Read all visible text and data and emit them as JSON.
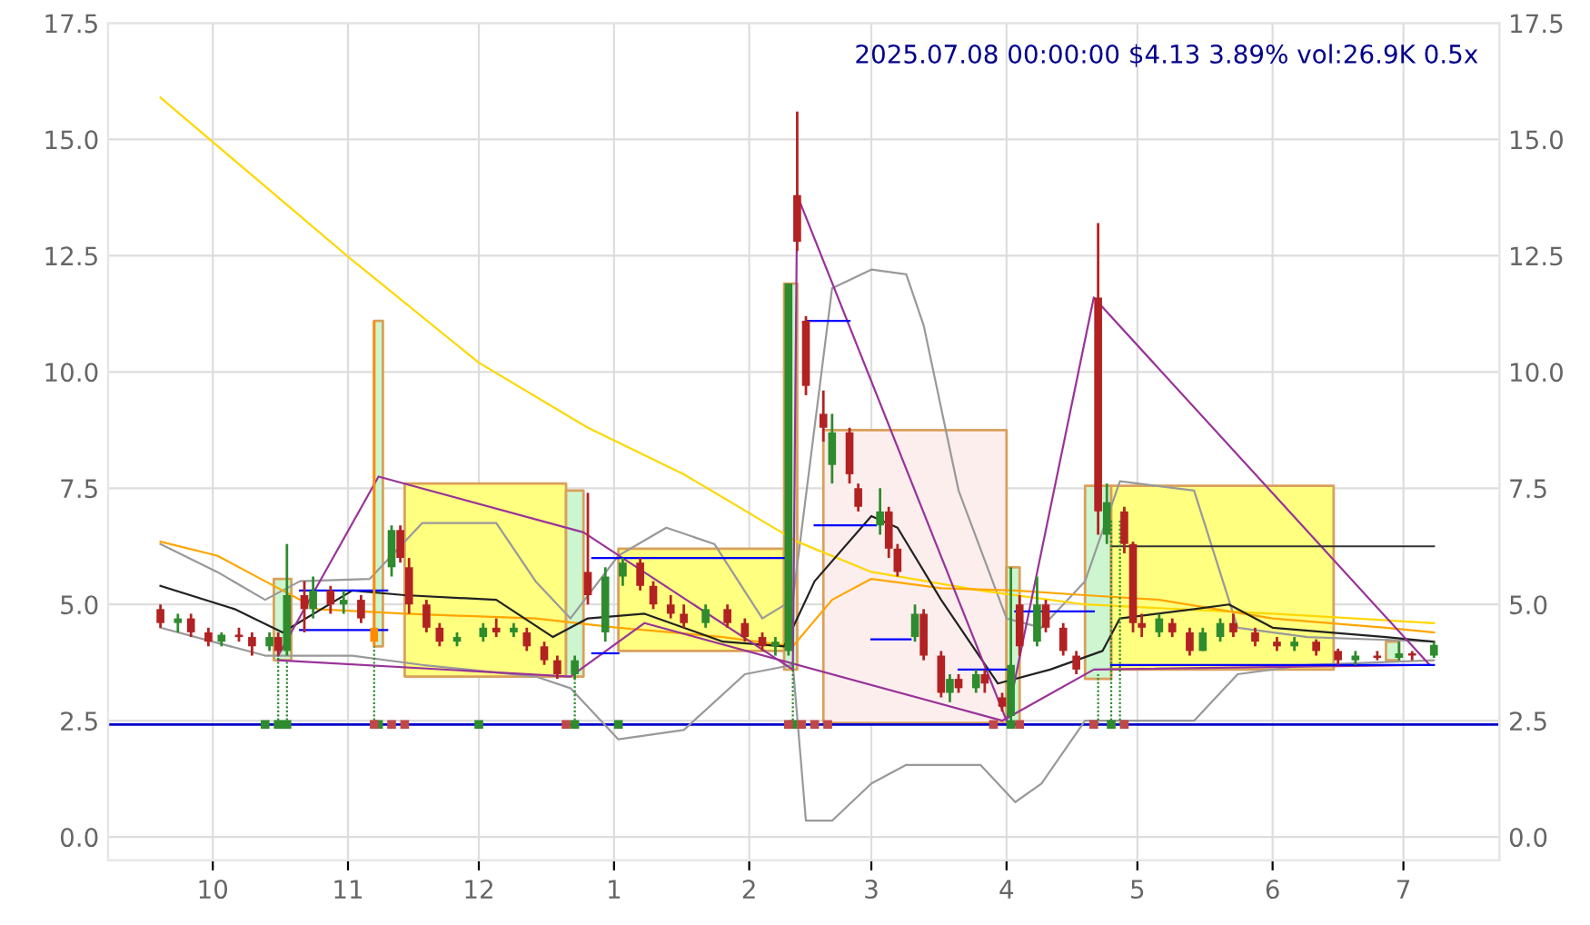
{
  "chart_data": {
    "type": "candlestick",
    "title": "2025.07.08 00:00:00 $4.13 3.89% vol:26.9K 0.5x",
    "x": [
      "2024-09-19",
      "2024-09-23",
      "2024-09-26",
      "2024-09-30",
      "2024-10-03",
      "2024-10-07",
      "2024-10-10",
      "2024-10-14",
      "2024-10-16",
      "2024-10-18",
      "2024-10-22",
      "2024-10-24",
      "2024-10-28",
      "2024-10-31",
      "2024-11-04",
      "2024-11-07",
      "2024-11-11",
      "2024-11-13",
      "2024-11-15",
      "2024-11-19",
      "2024-11-22",
      "2024-11-26",
      "2024-12-02",
      "2024-12-05",
      "2024-12-09",
      "2024-12-12",
      "2024-12-16",
      "2024-12-19",
      "2024-12-23",
      "2024-12-26",
      "2024-12-30",
      "2025-01-03",
      "2025-01-07",
      "2025-01-10",
      "2025-01-14",
      "2025-01-17",
      "2025-01-22",
      "2025-01-27",
      "2025-01-31",
      "2025-02-04",
      "2025-02-07",
      "2025-02-10",
      "2025-02-12",
      "2025-02-14",
      "2025-02-18",
      "2025-02-20",
      "2025-02-24",
      "2025-02-26",
      "2025-03-03",
      "2025-03-05",
      "2025-03-07",
      "2025-03-11",
      "2025-03-13",
      "2025-03-17",
      "2025-03-19",
      "2025-03-21",
      "2025-03-25",
      "2025-03-27",
      "2025-03-31",
      "2025-04-02",
      "2025-04-04",
      "2025-04-08",
      "2025-04-10",
      "2025-04-14",
      "2025-04-17",
      "2025-04-22",
      "2025-04-24",
      "2025-04-28",
      "2025-04-30",
      "2025-05-02",
      "2025-05-06",
      "2025-05-09",
      "2025-05-13",
      "2025-05-16",
      "2025-05-20",
      "2025-05-23",
      "2025-05-28",
      "2025-06-02",
      "2025-06-06",
      "2025-06-11",
      "2025-06-16",
      "2025-06-20",
      "2025-06-25",
      "2025-06-30",
      "2025-07-03",
      "2025-07-08"
    ],
    "ohlc": [
      [
        4.9,
        5.0,
        4.5,
        4.6
      ],
      [
        4.6,
        4.8,
        4.4,
        4.7
      ],
      [
        4.7,
        4.8,
        4.3,
        4.4
      ],
      [
        4.4,
        4.5,
        4.1,
        4.2
      ],
      [
        4.2,
        4.4,
        4.1,
        4.35
      ],
      [
        4.35,
        4.5,
        4.2,
        4.3
      ],
      [
        4.3,
        4.4,
        3.9,
        4.1
      ],
      [
        4.1,
        4.4,
        4.0,
        4.3
      ],
      [
        4.3,
        4.4,
        3.9,
        4.0
      ],
      [
        4.0,
        6.3,
        3.9,
        5.2
      ],
      [
        5.2,
        5.5,
        4.4,
        4.9
      ],
      [
        4.9,
        5.6,
        4.7,
        5.3
      ],
      [
        5.3,
        5.4,
        4.8,
        5.0
      ],
      [
        5.0,
        5.3,
        4.8,
        5.1
      ],
      [
        5.1,
        5.2,
        4.6,
        4.7
      ],
      [
        4.5,
        11.1,
        4.1,
        4.2
      ],
      [
        5.8,
        6.7,
        5.6,
        6.6
      ],
      [
        6.6,
        6.7,
        5.9,
        6.0
      ],
      [
        5.8,
        6.0,
        4.8,
        5.0
      ],
      [
        5.0,
        5.1,
        4.4,
        4.5
      ],
      [
        4.5,
        4.6,
        4.1,
        4.2
      ],
      [
        4.2,
        4.4,
        4.1,
        4.3
      ],
      [
        4.3,
        4.6,
        4.2,
        4.5
      ],
      [
        4.5,
        4.7,
        4.3,
        4.4
      ],
      [
        4.4,
        4.6,
        4.3,
        4.5
      ],
      [
        4.4,
        4.5,
        4.0,
        4.1
      ],
      [
        4.1,
        4.2,
        3.7,
        3.8
      ],
      [
        3.8,
        3.9,
        3.4,
        3.5
      ],
      [
        3.5,
        3.9,
        3.4,
        3.8
      ],
      [
        5.7,
        7.4,
        5.0,
        5.2
      ],
      [
        4.4,
        5.8,
        4.2,
        5.6
      ],
      [
        5.6,
        6.0,
        5.4,
        5.9
      ],
      [
        5.9,
        6.0,
        5.3,
        5.4
      ],
      [
        5.4,
        5.5,
        4.9,
        5.0
      ],
      [
        5.0,
        5.2,
        4.7,
        4.8
      ],
      [
        4.8,
        5.0,
        4.5,
        4.6
      ],
      [
        4.6,
        5.0,
        4.5,
        4.9
      ],
      [
        4.9,
        5.0,
        4.5,
        4.6
      ],
      [
        4.6,
        4.7,
        4.2,
        4.3
      ],
      [
        4.3,
        4.4,
        4.0,
        4.1
      ],
      [
        4.1,
        4.3,
        3.9,
        4.2
      ],
      [
        4.0,
        11.9,
        3.9,
        11.9
      ],
      [
        13.8,
        15.6,
        12.6,
        12.8
      ],
      [
        11.1,
        11.2,
        9.5,
        9.7
      ],
      [
        9.1,
        9.6,
        8.5,
        8.8
      ],
      [
        8.0,
        9.1,
        7.6,
        8.7
      ],
      [
        8.7,
        8.8,
        7.6,
        7.8
      ],
      [
        7.5,
        7.6,
        7.0,
        7.1
      ],
      [
        6.7,
        7.5,
        6.5,
        7.0
      ],
      [
        7.0,
        7.1,
        6.0,
        6.2
      ],
      [
        6.2,
        6.3,
        5.6,
        5.7
      ],
      [
        4.3,
        5.0,
        4.2,
        4.8
      ],
      [
        4.8,
        4.9,
        3.8,
        3.9
      ],
      [
        3.9,
        4.0,
        3.0,
        3.1
      ],
      [
        3.1,
        3.5,
        2.9,
        3.4
      ],
      [
        3.4,
        3.5,
        3.1,
        3.2
      ],
      [
        3.2,
        3.6,
        3.1,
        3.5
      ],
      [
        3.5,
        3.6,
        3.1,
        3.3
      ],
      [
        3.0,
        3.1,
        2.7,
        2.8
      ],
      [
        2.6,
        5.8,
        2.5,
        3.7
      ],
      [
        5.0,
        5.2,
        3.9,
        4.1
      ],
      [
        4.2,
        5.6,
        4.1,
        5.0
      ],
      [
        5.0,
        5.1,
        4.4,
        4.5
      ],
      [
        4.5,
        4.6,
        3.9,
        4.0
      ],
      [
        3.9,
        4.0,
        3.5,
        3.6
      ],
      [
        11.6,
        13.2,
        6.5,
        7.0
      ],
      [
        6.5,
        7.6,
        6.3,
        7.2
      ],
      [
        7.0,
        7.1,
        6.1,
        6.3
      ],
      [
        6.3,
        6.35,
        4.4,
        4.6
      ],
      [
        4.6,
        4.8,
        4.3,
        4.5
      ],
      [
        4.4,
        4.8,
        4.3,
        4.7
      ],
      [
        4.6,
        4.7,
        4.3,
        4.4
      ],
      [
        4.4,
        4.5,
        3.9,
        4.0
      ],
      [
        4.0,
        4.5,
        4.0,
        4.4
      ],
      [
        4.3,
        4.7,
        4.2,
        4.6
      ],
      [
        4.6,
        4.8,
        4.3,
        4.4
      ],
      [
        4.4,
        4.5,
        4.1,
        4.2
      ],
      [
        4.2,
        4.3,
        4.0,
        4.1
      ],
      [
        4.1,
        4.3,
        4.0,
        4.2
      ],
      [
        4.2,
        4.25,
        3.9,
        4.0
      ],
      [
        4.0,
        4.05,
        3.7,
        3.8
      ],
      [
        3.8,
        4.0,
        3.7,
        3.9
      ],
      [
        3.9,
        4.0,
        3.8,
        3.85
      ],
      [
        3.85,
        4.2,
        3.8,
        3.95
      ],
      [
        3.95,
        4.0,
        3.8,
        3.9
      ],
      [
        3.9,
        4.2,
        3.85,
        4.13
      ]
    ],
    "colors": [
      "#b22222",
      "#2e8b2e",
      "#b22222",
      "#b22222",
      "#2e8b2e",
      "#b22222",
      "#b22222",
      "#2e8b2e",
      "#b22222",
      "#2e8b2e",
      "#b22222",
      "#2e8b2e",
      "#b22222",
      "#2e8b2e",
      "#b22222",
      "#ff8c00",
      "#2e8b2e",
      "#b22222",
      "#b22222",
      "#b22222",
      "#b22222",
      "#2e8b2e",
      "#2e8b2e",
      "#b22222",
      "#2e8b2e",
      "#b22222",
      "#b22222",
      "#b22222",
      "#2e8b2e",
      "#b22222",
      "#2e8b2e",
      "#2e8b2e",
      "#b22222",
      "#b22222",
      "#b22222",
      "#b22222",
      "#2e8b2e",
      "#b22222",
      "#b22222",
      "#b22222",
      "#2e8b2e",
      "#2e8b2e",
      "#b22222",
      "#b22222",
      "#b22222",
      "#2e8b2e",
      "#b22222",
      "#b22222",
      "#2e8b2e",
      "#b22222",
      "#b22222",
      "#2e8b2e",
      "#b22222",
      "#b22222",
      "#2e8b2e",
      "#b22222",
      "#2e8b2e",
      "#b22222",
      "#b22222",
      "#2e8b2e",
      "#b22222",
      "#2e8b2e",
      "#b22222",
      "#b22222",
      "#b22222",
      "#b22222",
      "#2e8b2e",
      "#b22222",
      "#b22222",
      "#b22222",
      "#2e8b2e",
      "#b22222",
      "#b22222",
      "#2e8b2e",
      "#2e8b2e",
      "#b22222",
      "#b22222",
      "#b22222",
      "#2e8b2e",
      "#b22222",
      "#b22222",
      "#2e8b2e",
      "#b22222",
      "#2e8b2e",
      "#b22222",
      "#2e8b2e"
    ],
    "series": [
      {
        "type": "line",
        "color": "#ccf5d0",
        "x": [
          "2024-10-15",
          "2024-10-19"
        ],
        "values": [
          null,
          null
        ],
        "lower": [
          3.8,
          3.8
        ],
        "upper": [
          5.55,
          5.55
        ]
      },
      {
        "type": "line",
        "color": "#ccf5d0",
        "x": [
          "2024-11-07",
          "2024-11-09"
        ],
        "values": [
          null,
          null
        ],
        "lower": [
          4.1,
          4.1
        ],
        "upper": [
          11.1,
          11.1
        ]
      },
      {
        "type": "line",
        "color": "#ffff80",
        "x": [
          "2024-11-14",
          "2024-12-21"
        ],
        "values": [
          null,
          null
        ],
        "lower": [
          3.45,
          3.45
        ],
        "upper": [
          7.6,
          7.6
        ]
      },
      {
        "type": "line",
        "color": "#ccf5d0",
        "x": [
          "2024-12-21",
          "2024-12-25"
        ],
        "values": [
          null,
          null
        ],
        "lower": [
          3.45,
          3.45
        ],
        "upper": [
          7.45,
          7.45
        ]
      },
      {
        "type": "line",
        "color": "#ffff80",
        "x": [
          "2025-01-02",
          "2025-02-09"
        ],
        "values": [
          null,
          null
        ],
        "lower": [
          4.0,
          4.0
        ],
        "upper": [
          6.2,
          6.2
        ]
      },
      {
        "type": "line",
        "color": "#ccf5d0",
        "x": [
          "2025-02-09",
          "2025-02-12"
        ],
        "values": [
          null,
          null
        ],
        "lower": [
          3.6,
          3.6
        ],
        "upper": [
          11.9,
          11.9
        ]
      },
      {
        "type": "line",
        "color": "#fdeeee",
        "x": [
          "2025-02-18",
          "2025-04-01"
        ],
        "values": [
          null,
          null
        ],
        "lower": [
          2.45,
          2.45
        ],
        "upper": [
          8.75,
          8.75
        ]
      },
      {
        "type": "line",
        "color": "#ccf5d0",
        "x": [
          "2025-04-01",
          "2025-04-04"
        ],
        "values": [
          null,
          null
        ],
        "lower": [
          2.45,
          2.45
        ],
        "upper": [
          5.8,
          5.8
        ]
      },
      {
        "type": "line",
        "color": "#ccf5d0",
        "x": [
          "2025-04-19",
          "2025-04-25"
        ],
        "values": [
          null,
          null
        ],
        "lower": [
          3.4,
          3.4
        ],
        "upper": [
          7.55,
          7.55
        ]
      },
      {
        "type": "line",
        "color": "#ffff80",
        "x": [
          "2025-04-25",
          "2025-06-15"
        ],
        "values": [
          null,
          null
        ],
        "lower": [
          3.6,
          3.6
        ],
        "upper": [
          7.55,
          7.55
        ]
      },
      {
        "type": "line",
        "color": "#ccf5d0",
        "x": [
          "2025-06-27",
          "2025-06-30"
        ],
        "values": [
          null,
          null
        ],
        "lower": [
          3.8,
          3.8
        ],
        "upper": [
          4.2,
          4.2
        ]
      },
      {
        "type": "line",
        "color": "#999999",
        "x": [
          "2024-09-19",
          "2024-10-02",
          "2024-10-13",
          "2024-10-21",
          "2024-11-06",
          "2024-11-18",
          "2024-12-05",
          "2024-12-14",
          "2024-12-22",
          "2025-01-02",
          "2025-01-13",
          "2025-01-24",
          "2025-02-04",
          "2025-02-11",
          "2025-02-20",
          "2025-03-01",
          "2025-03-09",
          "2025-03-13",
          "2025-03-21",
          "2025-04-01",
          "2025-04-09",
          "2025-04-19",
          "2025-04-27",
          "2025-05-14",
          "2025-05-24",
          "2025-06-09",
          "2025-07-08"
        ],
        "values": [
          6.3,
          5.7,
          5.1,
          5.5,
          5.55,
          6.75,
          6.75,
          5.5,
          4.7,
          6.05,
          6.65,
          6.3,
          4.7,
          5.1,
          11.8,
          12.2,
          12.1,
          11.0,
          7.45,
          4.7,
          4.5,
          5.5,
          7.65,
          7.45,
          4.5,
          4.3,
          4.2
        ]
      },
      {
        "type": "line",
        "color": "#999999",
        "x": [
          "2024-09-19",
          "2024-10-13",
          "2024-11-02",
          "2024-11-18",
          "2024-12-14",
          "2024-12-22",
          "2025-01-02",
          "2025-01-17",
          "2025-01-31",
          "2025-02-11",
          "2025-02-14",
          "2025-02-20",
          "2025-03-01",
          "2025-03-09",
          "2025-03-26",
          "2025-04-03",
          "2025-04-09",
          "2025-04-19",
          "2025-04-29",
          "2025-05-14",
          "2025-05-24",
          "2025-06-09",
          "2025-07-08"
        ],
        "values": [
          4.5,
          3.9,
          3.9,
          3.7,
          3.45,
          3.2,
          2.1,
          2.3,
          3.5,
          3.7,
          0.35,
          0.35,
          1.15,
          1.55,
          1.55,
          0.75,
          1.15,
          2.5,
          2.5,
          2.5,
          3.5,
          3.7,
          3.8
        ]
      },
      {
        "type": "line",
        "color": "#ffd700",
        "x": [
          "2024-09-19",
          "2024-11-02",
          "2024-12-01",
          "2024-12-26",
          "2025-01-17",
          "2025-02-12",
          "2025-03-01",
          "2025-03-26",
          "2025-04-19",
          "2025-06-01",
          "2025-07-08"
        ],
        "values": [
          15.9,
          12.4,
          10.2,
          8.8,
          7.8,
          6.35,
          5.7,
          5.3,
          5.0,
          4.8,
          4.6
        ]
      },
      {
        "type": "line",
        "color": "#ffa500",
        "x": [
          "2024-09-19",
          "2024-10-02",
          "2024-10-13",
          "2024-10-25",
          "2024-11-14",
          "2024-12-14",
          "2025-01-02",
          "2025-01-26",
          "2025-02-11",
          "2025-02-20",
          "2025-03-01",
          "2025-03-17",
          "2025-04-03",
          "2025-04-19",
          "2025-05-06",
          "2025-06-01",
          "2025-06-27",
          "2025-07-08"
        ],
        "values": [
          6.35,
          6.05,
          5.5,
          4.9,
          4.8,
          4.7,
          4.5,
          4.3,
          4.1,
          5.1,
          5.55,
          5.35,
          5.3,
          5.2,
          5.1,
          4.7,
          4.5,
          4.4
        ]
      },
      {
        "type": "line",
        "color": "#222222",
        "x": [
          "2024-09-19",
          "2024-10-06",
          "2024-10-17",
          "2024-11-02",
          "2024-11-14",
          "2024-12-05",
          "2024-12-18",
          "2024-12-26",
          "2025-01-08",
          "2025-01-26",
          "2025-02-09",
          "2025-02-16",
          "2025-03-01",
          "2025-03-07",
          "2025-03-17",
          "2025-03-30",
          "2025-04-11",
          "2025-04-23",
          "2025-04-27",
          "2025-05-14",
          "2025-05-22",
          "2025-06-01",
          "2025-06-27",
          "2025-07-08"
        ],
        "values": [
          5.4,
          4.9,
          4.4,
          5.3,
          5.2,
          5.1,
          4.3,
          4.7,
          4.8,
          4.2,
          4.1,
          5.5,
          6.9,
          6.65,
          5.1,
          3.3,
          3.6,
          4.0,
          4.7,
          4.9,
          5.0,
          4.5,
          4.3,
          4.2
        ]
      },
      {
        "type": "line",
        "color": "#993399",
        "x": [
          "2024-10-16",
          "2024-11-08",
          "2024-12-25",
          "2025-02-11",
          "2025-02-12",
          "2025-04-01",
          "2025-04-21",
          "2025-07-07"
        ],
        "values": [
          3.9,
          7.75,
          6.55,
          3.6,
          13.8,
          2.5,
          11.6,
          3.7
        ]
      },
      {
        "type": "line",
        "color": "#993399",
        "x": [
          "2024-10-16",
          "2024-12-22",
          "2025-01-08",
          "2025-03-31",
          "2025-04-21",
          "2025-07-07"
        ],
        "values": [
          3.8,
          3.45,
          4.6,
          2.5,
          3.6,
          3.7
        ]
      },
      {
        "type": "line",
        "color": "#0000ff",
        "x": [
          "2024-10-21",
          "2024-11-10"
        ],
        "values": [
          5.3,
          5.3
        ]
      },
      {
        "type": "line",
        "color": "#0000ff",
        "x": [
          "2024-10-21",
          "2024-11-10"
        ],
        "values": [
          4.45,
          4.45
        ]
      },
      {
        "type": "line",
        "color": "#0000ff",
        "x": [
          "2024-12-27",
          "2025-02-10"
        ],
        "values": [
          6.0,
          6.0
        ]
      },
      {
        "type": "line",
        "color": "#0000ff",
        "x": [
          "2024-12-27",
          "2025-01-02"
        ],
        "values": [
          3.95,
          3.95
        ]
      },
      {
        "type": "line",
        "color": "#0000ff",
        "x": [
          "2025-02-14",
          "2025-02-24"
        ],
        "values": [
          11.1,
          11.1
        ]
      },
      {
        "type": "line",
        "color": "#0000ff",
        "x": [
          "2025-02-16",
          "2025-03-02"
        ],
        "values": [
          6.7,
          6.7
        ]
      },
      {
        "type": "line",
        "color": "#0000ff",
        "x": [
          "2025-03-01",
          "2025-03-10"
        ],
        "values": [
          4.25,
          4.25
        ]
      },
      {
        "type": "line",
        "color": "#0000ff",
        "x": [
          "2025-03-21",
          "2025-04-01"
        ],
        "values": [
          3.6,
          3.6
        ]
      },
      {
        "type": "line",
        "color": "#0000ff",
        "x": [
          "2025-04-03",
          "2025-04-21"
        ],
        "values": [
          4.85,
          4.85
        ]
      },
      {
        "type": "line",
        "color": "#0000ff",
        "x": [
          "2025-04-25",
          "2025-07-08"
        ],
        "values": [
          3.7,
          3.7
        ]
      },
      {
        "type": "line",
        "color": "#333333",
        "x": [
          "2025-04-25",
          "2025-07-08"
        ],
        "values": [
          6.25,
          6.25
        ]
      },
      {
        "type": "line",
        "color": "#2e8b2e",
        "line_style": "dotted",
        "x": [
          "2024-10-16",
          "2024-10-16"
        ],
        "values": [
          2.42,
          4.0
        ]
      },
      {
        "type": "line",
        "color": "#2e8b2e",
        "line_style": "dotted",
        "x": [
          "2024-10-18",
          "2024-10-18"
        ],
        "values": [
          2.42,
          3.8
        ]
      },
      {
        "type": "line",
        "color": "#2e8b2e",
        "line_style": "dotted",
        "x": [
          "2024-11-07",
          "2024-11-07"
        ],
        "values": [
          2.42,
          4.1
        ]
      },
      {
        "type": "line",
        "color": "#2e8b2e",
        "line_style": "dotted",
        "x": [
          "2024-12-23",
          "2024-12-23"
        ],
        "values": [
          2.42,
          3.5
        ]
      },
      {
        "type": "line",
        "color": "#2e8b2e",
        "line_style": "dotted",
        "x": [
          "2025-02-11",
          "2025-02-11"
        ],
        "values": [
          2.42,
          3.8
        ]
      },
      {
        "type": "line",
        "color": "#2e8b2e",
        "line_style": "dotted",
        "x": [
          "2025-04-22",
          "2025-04-22"
        ],
        "values": [
          2.42,
          3.5
        ]
      },
      {
        "type": "line",
        "color": "#2e8b2e",
        "line_style": "dotted",
        "x": [
          "2025-04-25",
          "2025-04-25"
        ],
        "values": [
          2.42,
          6.8
        ]
      },
      {
        "type": "line",
        "color": "#2e8b2e",
        "line_style": "dotted",
        "x": [
          "2025-04-27",
          "2025-04-27"
        ],
        "values": [
          2.42,
          6.8
        ]
      },
      {
        "type": "scatter",
        "marker": "square",
        "color": "#2e8b2e",
        "x": [
          "2024-10-13",
          "2024-10-16",
          "2024-10-18",
          "2024-11-08",
          "2024-12-01",
          "2024-12-23",
          "2025-01-02",
          "2025-02-11",
          "2025-04-02",
          "2025-04-25"
        ],
        "values": [
          2.42,
          2.42,
          2.42,
          2.42,
          2.42,
          2.42,
          2.42,
          2.42,
          2.42,
          2.42
        ]
      },
      {
        "type": "scatter",
        "marker": "square",
        "color": "#c04848",
        "x": [
          "2024-11-07",
          "2024-11-11",
          "2024-11-14",
          "2024-12-21",
          "2025-02-10",
          "2025-02-13",
          "2025-02-16",
          "2025-02-19",
          "2025-03-29",
          "2025-04-04",
          "2025-04-21",
          "2025-04-28"
        ],
        "values": [
          2.42,
          2.42,
          2.42,
          2.42,
          2.42,
          2.42,
          2.42,
          2.42,
          2.42,
          2.42,
          2.42,
          2.42
        ]
      }
    ],
    "ref_lines": [
      {
        "axis": "y",
        "value": 2.42,
        "color": "#0000cc"
      }
    ],
    "xlim": [
      "2024-09-07",
      "2025-07-23"
    ],
    "xticks": [
      {
        "value": "2024-10-01",
        "label": "10"
      },
      {
        "value": "2024-11-01",
        "label": "11"
      },
      {
        "value": "2024-12-01",
        "label": "12"
      },
      {
        "value": "2025-01-01",
        "label": "1"
      },
      {
        "value": "2025-02-01",
        "label": "2"
      },
      {
        "value": "2025-03-01",
        "label": "3"
      },
      {
        "value": "2025-04-01",
        "label": "4"
      },
      {
        "value": "2025-05-01",
        "label": "5"
      },
      {
        "value": "2025-06-01",
        "label": "6"
      },
      {
        "value": "2025-07-01",
        "label": "7"
      }
    ],
    "ylim": [
      -0.5,
      17.5
    ],
    "yticks": [
      {
        "value": 0,
        "label": "0.0"
      },
      {
        "value": 2.5,
        "label": "2.5"
      },
      {
        "value": 5,
        "label": "5.0"
      },
      {
        "value": 7.5,
        "label": "7.5"
      },
      {
        "value": 10,
        "label": "10.0"
      },
      {
        "value": 12.5,
        "label": "12.5"
      },
      {
        "value": 15,
        "label": "15.0"
      },
      {
        "value": 17.5,
        "label": "17.5"
      }
    ],
    "y2lim": [
      -0.5,
      17.5
    ],
    "y2ticks": [
      {
        "value": 0,
        "label": "0.0"
      },
      {
        "value": 2.5,
        "label": "2.5"
      },
      {
        "value": 5,
        "label": "5.0"
      },
      {
        "value": 7.5,
        "label": "7.5"
      },
      {
        "value": 10,
        "label": "10.0"
      },
      {
        "value": 12.5,
        "label": "12.5"
      },
      {
        "value": 15,
        "label": "15.0"
      },
      {
        "value": 17.5,
        "label": "17.5"
      }
    ],
    "grid": true,
    "legend": false
  }
}
